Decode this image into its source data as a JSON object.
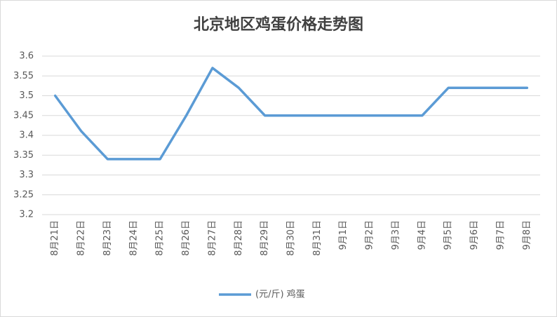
{
  "chart_data": {
    "type": "line",
    "title": "北京地区鸡蛋价格走势图",
    "categories": [
      "8月21日",
      "8月22日",
      "8月23日",
      "8月24日",
      "8月25日",
      "8月26日",
      "8月27日",
      "8月28日",
      "8月29日",
      "8月30日",
      "8月31日",
      "9月1日",
      "9月2日",
      "9月3日",
      "9月4日",
      "9月5日",
      "9月6日",
      "9月7日",
      "9月8日"
    ],
    "series": [
      {
        "name": "(元/斤) 鸡蛋",
        "color": "#5b9bd5",
        "values": [
          3.5,
          3.41,
          3.34,
          3.34,
          3.34,
          3.45,
          3.57,
          3.52,
          3.45,
          3.45,
          3.45,
          3.45,
          3.45,
          3.45,
          3.45,
          3.52,
          3.52,
          3.52,
          3.52
        ]
      }
    ],
    "ylim": [
      3.2,
      3.6
    ],
    "yticks": [
      3.2,
      3.25,
      3.3,
      3.35,
      3.4,
      3.45,
      3.5,
      3.55,
      3.6
    ],
    "grid": true,
    "legend": "bottom"
  }
}
